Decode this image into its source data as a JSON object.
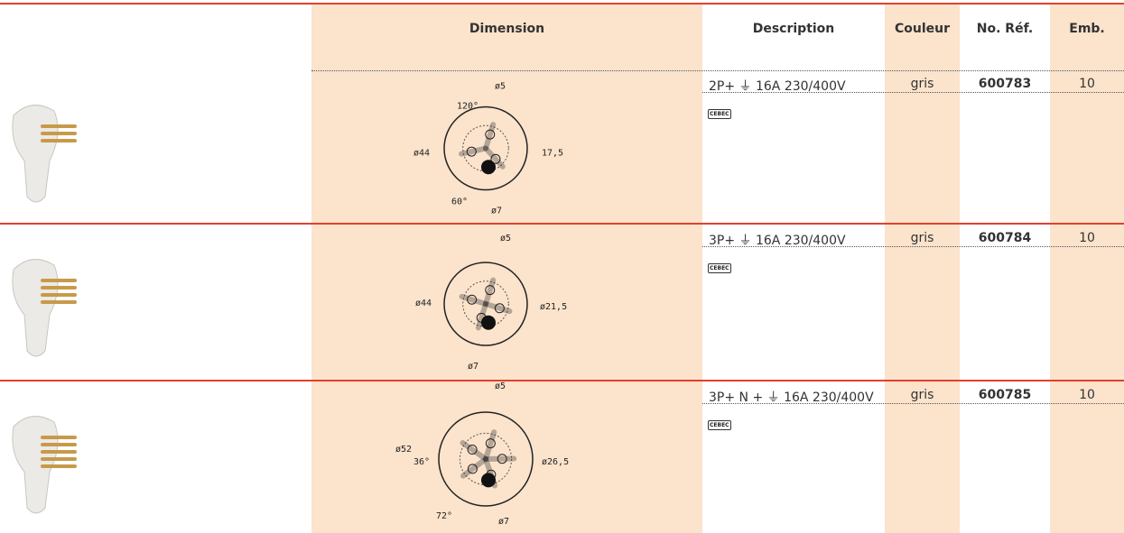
{
  "header": {
    "columns": [
      "Dimension",
      "Description",
      "Couleur",
      "No. Réf.",
      "Emb."
    ]
  },
  "rows": [
    {
      "description": "2P+ ⏚ 16A  230/400V",
      "color": "gris",
      "ref": "600783",
      "emb": "10",
      "mark": "CEBEC",
      "dimensions": [
        "ø5",
        "120°",
        "ø44",
        "17,5",
        "60°",
        "ø7"
      ]
    },
    {
      "description": "3P+ ⏚ 16A  230/400V",
      "color": "gris",
      "ref": "600784",
      "emb": "10",
      "mark": "CEBEC",
      "dimensions": [
        "ø5",
        "ø44",
        "ø21,5",
        "ø7"
      ]
    },
    {
      "description": "3P+ N + ⏚ 16A  230/400V",
      "color": "gris",
      "ref": "600785",
      "emb": "10",
      "mark": "CEBEC",
      "dimensions": [
        "ø5",
        "ø52",
        "36°",
        "ø26,5",
        "72°",
        "ø7"
      ]
    }
  ]
}
